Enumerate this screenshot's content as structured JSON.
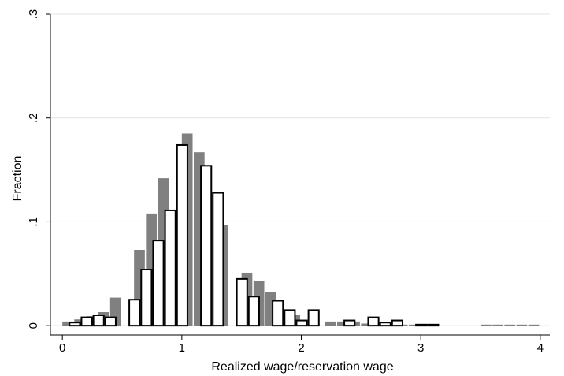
{
  "chart_data": {
    "type": "bar",
    "xlabel": "Realized wage/reservation wage",
    "ylabel": "Fraction",
    "xlim": [
      -0.1,
      4.08
    ],
    "ylim": [
      -0.009,
      0.3
    ],
    "xticks": [
      0,
      1,
      2,
      3,
      4
    ],
    "yticks": [
      0,
      0.1,
      0.2,
      0.3
    ],
    "xtick_labels": [
      "0",
      "1",
      "2",
      "3",
      "4"
    ],
    "ytick_labels": [
      "0",
      ".1",
      ".2",
      ".3"
    ],
    "grid": true,
    "grid_axis": "y",
    "bin_width": 0.1,
    "series": [
      {
        "style": "filled",
        "color": "#808080",
        "bins": [
          {
            "x0": 0.0,
            "value": 0.004
          },
          {
            "x0": 0.1,
            "value": 0.006
          },
          {
            "x0": 0.2,
            "value": 0.009
          },
          {
            "x0": 0.3,
            "value": 0.013
          },
          {
            "x0": 0.4,
            "value": 0.027
          },
          {
            "x0": 0.6,
            "value": 0.073
          },
          {
            "x0": 0.7,
            "value": 0.108
          },
          {
            "x0": 0.8,
            "value": 0.142
          },
          {
            "x0": 1.0,
            "value": 0.185
          },
          {
            "x0": 1.1,
            "value": 0.167
          },
          {
            "x0": 1.3,
            "value": 0.097
          },
          {
            "x0": 1.5,
            "value": 0.051
          },
          {
            "x0": 1.6,
            "value": 0.043
          },
          {
            "x0": 1.7,
            "value": 0.032
          },
          {
            "x0": 1.8,
            "value": 0.011
          },
          {
            "x0": 1.9,
            "value": 0.01
          },
          {
            "x0": 2.2,
            "value": 0.004
          },
          {
            "x0": 2.3,
            "value": 0.004
          },
          {
            "x0": 2.4,
            "value": 0.004
          },
          {
            "x0": 2.5,
            "value": 0.002
          },
          {
            "x0": 2.6,
            "value": 0.002
          },
          {
            "x0": 2.7,
            "value": 0.002
          },
          {
            "x0": 2.8,
            "value": 0.001
          },
          {
            "x0": 2.9,
            "value": 0.001
          },
          {
            "x0": 3.0,
            "value": 0.001
          },
          {
            "x0": 3.5,
            "value": 0.001
          },
          {
            "x0": 3.6,
            "value": 0.001
          },
          {
            "x0": 3.7,
            "value": 0.001
          },
          {
            "x0": 3.8,
            "value": 0.001
          },
          {
            "x0": 3.9,
            "value": 0.001
          }
        ]
      },
      {
        "style": "outline",
        "color": "#000000",
        "bins": [
          {
            "x0": 0.0,
            "value": 0.003
          },
          {
            "x0": 0.1,
            "value": 0.008
          },
          {
            "x0": 0.2,
            "value": 0.01
          },
          {
            "x0": 0.3,
            "value": 0.008
          },
          {
            "x0": 0.5,
            "value": 0.025
          },
          {
            "x0": 0.6,
            "value": 0.054
          },
          {
            "x0": 0.7,
            "value": 0.082
          },
          {
            "x0": 0.8,
            "value": 0.111
          },
          {
            "x0": 0.9,
            "value": 0.174
          },
          {
            "x0": 1.1,
            "value": 0.154
          },
          {
            "x0": 1.2,
            "value": 0.128
          },
          {
            "x0": 1.4,
            "value": 0.045
          },
          {
            "x0": 1.5,
            "value": 0.028
          },
          {
            "x0": 1.7,
            "value": 0.024
          },
          {
            "x0": 1.8,
            "value": 0.015
          },
          {
            "x0": 1.9,
            "value": 0.005
          },
          {
            "x0": 2.0,
            "value": 0.015
          },
          {
            "x0": 2.3,
            "value": 0.005
          },
          {
            "x0": 2.5,
            "value": 0.008
          },
          {
            "x0": 2.6,
            "value": 0.003
          },
          {
            "x0": 2.7,
            "value": 0.005
          },
          {
            "x0": 2.9,
            "value": 0.001
          },
          {
            "x0": 3.0,
            "value": 0.001
          }
        ]
      }
    ]
  }
}
